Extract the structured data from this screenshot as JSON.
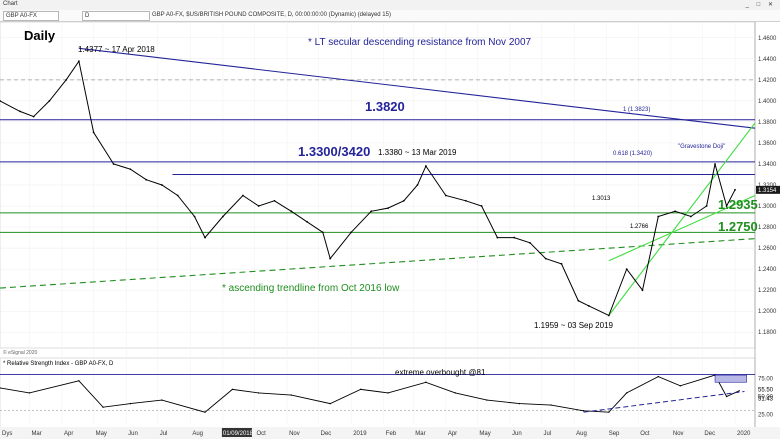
{
  "window": {
    "tab": "Chart",
    "symbol_box": "GBP A0-FX",
    "interval_box": "D",
    "legend": "GBP A0-FX, $US/BRITISH POUND COMPOSITE, D, 00:00:00:00 (Dynamic) (delayed 15)",
    "buttons": "_ □ ✕"
  },
  "chart_data": {
    "type": "line",
    "title": "Daily",
    "price_axis": {
      "ylim": [
        1.165,
        1.475
      ],
      "ticks": [
        "1.4600",
        "1.4400",
        "1.4200",
        "1.4000",
        "1.3800",
        "1.3600",
        "1.3400",
        "1.3200",
        "1.3000",
        "1.2800",
        "1.2600",
        "1.2400",
        "1.2200",
        "1.2000",
        "1.1800"
      ],
      "last_price": "1.3154"
    },
    "x_axis": {
      "labels": [
        "Mar",
        "Apr",
        "May",
        "Jun",
        "Jul",
        "Aug",
        "01/09/2018",
        "Oct",
        "Nov",
        "Dec",
        "2019",
        "Feb",
        "Mar",
        "Apr",
        "May",
        "Jun",
        "Jul",
        "Aug",
        "Sep",
        "Oct",
        "Nov",
        "Dec",
        "2020"
      ],
      "corner": "Dys"
    },
    "series": [
      {
        "name": "GBP A0-FX",
        "x": [
          "2018-02-01",
          "2018-02-20",
          "2018-03-05",
          "2018-03-20",
          "2018-04-05",
          "2018-04-17",
          "2018-05-01",
          "2018-05-20",
          "2018-06-05",
          "2018-06-20",
          "2018-07-05",
          "2018-07-20",
          "2018-08-05",
          "2018-08-15",
          "2018-09-01",
          "2018-09-20",
          "2018-10-05",
          "2018-10-20",
          "2018-11-05",
          "2018-11-20",
          "2018-12-05",
          "2018-12-12",
          "2019-01-01",
          "2019-01-20",
          "2019-02-05",
          "2019-02-20",
          "2019-03-05",
          "2019-03-13",
          "2019-04-01",
          "2019-04-20",
          "2019-05-05",
          "2019-05-20",
          "2019-06-05",
          "2019-06-20",
          "2019-07-05",
          "2019-07-20",
          "2019-08-05",
          "2019-08-15",
          "2019-09-03",
          "2019-09-20",
          "2019-10-05",
          "2019-10-20",
          "2019-11-05",
          "2019-11-20",
          "2019-12-05",
          "2019-12-13",
          "2019-12-24",
          "2020-01-01"
        ],
        "y": [
          1.4,
          1.39,
          1.385,
          1.4,
          1.42,
          1.4377,
          1.37,
          1.34,
          1.335,
          1.325,
          1.32,
          1.31,
          1.29,
          1.27,
          1.29,
          1.31,
          1.3,
          1.305,
          1.295,
          1.285,
          1.275,
          1.25,
          1.275,
          1.295,
          1.298,
          1.305,
          1.32,
          1.338,
          1.31,
          1.305,
          1.3,
          1.27,
          1.27,
          1.265,
          1.25,
          1.245,
          1.21,
          1.205,
          1.1959,
          1.24,
          1.22,
          1.29,
          1.295,
          1.29,
          1.3,
          1.34,
          1.3,
          1.3154
        ]
      }
    ],
    "horizontal_levels": [
      {
        "y": 1.42,
        "style": "dashed",
        "color": "#999999"
      },
      {
        "y": 1.382,
        "style": "solid",
        "color": "#23239a",
        "label": "1.3820",
        "fib_label": "1 (1.3823)"
      },
      {
        "y": 1.342,
        "style": "solid",
        "color": "#23239a",
        "label": "1.3300/3420",
        "fib_label": "0.618 (1.3420)"
      },
      {
        "y": 1.33,
        "style": "solid",
        "color": "#23239a"
      },
      {
        "y": 1.2935,
        "style": "solid",
        "color": "#1f8f1f",
        "label": "1.2935"
      },
      {
        "y": 1.275,
        "style": "solid",
        "color": "#1f8f1f",
        "label": "1.2750"
      }
    ],
    "trendlines": [
      {
        "from": [
          "2018-04-17",
          1.45
        ],
        "to": [
          "2020-01-20",
          1.374
        ],
        "color": "#23239a",
        "style": "solid"
      },
      {
        "from": [
          "2018-02-01",
          1.222
        ],
        "to": [
          "2020-01-20",
          1.269
        ],
        "color": "#1f8f1f",
        "style": "dashed"
      },
      {
        "from": [
          "2019-09-03",
          1.1959
        ],
        "to": [
          "2020-01-20",
          1.379
        ],
        "color": "#3fdd3f",
        "style": "solid"
      },
      {
        "from": [
          "2019-09-03",
          1.248
        ],
        "to": [
          "2020-01-20",
          1.31
        ],
        "color": "#3fdd3f",
        "style": "solid"
      }
    ],
    "annotations": {
      "high_2018": "1.4377 ~ 17 Apr 2018",
      "high_2019": "1.3380 ~ 13 Mar 2019",
      "low_2019": "1.1959 ~ 03 Sep 2019",
      "lt_resistance": "* LT secular descending resistance from Nov 2007",
      "asc_trendline": "* ascending trendline from Oct 2016 low",
      "gravestone": "\"Gravestone Doji\"",
      "fib_1301": "1.3013",
      "fib_1276": "1.2766"
    },
    "rsi": {
      "title": "* Relative Strength Index - GBP A0-FX, D",
      "ylim": [
        10,
        90
      ],
      "ticks": [
        "75.00",
        "50.00",
        "25.00"
      ],
      "current_labels": [
        "55.50",
        "51.43"
      ],
      "annotation": "extreme overbought @81",
      "overbought": 81,
      "oversold": 30,
      "x": [
        "2018-02-01",
        "2018-03-01",
        "2018-04-17",
        "2018-05-10",
        "2018-06-05",
        "2018-07-05",
        "2018-08-15",
        "2018-09-10",
        "2018-10-05",
        "2018-11-05",
        "2018-12-12",
        "2019-01-10",
        "2019-02-05",
        "2019-03-13",
        "2019-04-10",
        "2019-05-10",
        "2019-06-10",
        "2019-07-10",
        "2019-08-10",
        "2019-09-03",
        "2019-09-20",
        "2019-10-20",
        "2019-11-10",
        "2019-12-13",
        "2019-12-24",
        "2020-01-05"
      ],
      "y": [
        62,
        55,
        72,
        35,
        40,
        45,
        28,
        60,
        55,
        52,
        40,
        60,
        55,
        70,
        55,
        45,
        40,
        38,
        30,
        28,
        55,
        78,
        65,
        80,
        50,
        58
      ]
    }
  },
  "footer": {
    "credit": "© eSignal 2020"
  }
}
